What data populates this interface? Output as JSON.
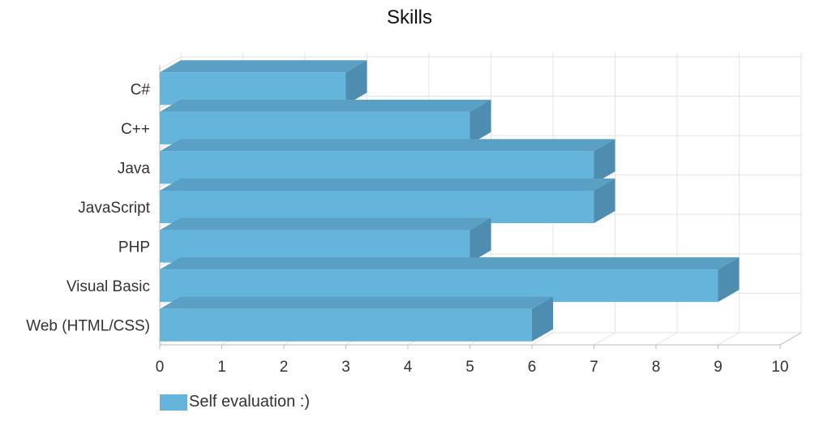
{
  "chart_data": {
    "type": "bar",
    "orientation": "horizontal",
    "style": "3d",
    "title": "Skills",
    "categories": [
      "C#",
      "C++",
      "Java",
      "JavaScript",
      "PHP",
      "Visual Basic",
      "Web (HTML/CSS)"
    ],
    "series": [
      {
        "name": "Self evaluation :)",
        "values": [
          3,
          5,
          7,
          7,
          5,
          9,
          6
        ]
      }
    ],
    "xlim": [
      0,
      10
    ],
    "xticks": [
      "0",
      "1",
      "2",
      "3",
      "4",
      "5",
      "6",
      "7",
      "8",
      "9",
      "10"
    ],
    "grid": true,
    "legend": "bottom-left",
    "colors": {
      "bar_front": "#65b4db",
      "bar_top": "#5a9fc4",
      "bar_side": "#4e8db0",
      "grid": "#e3e3e3",
      "axis": "#bbbbbb"
    }
  }
}
